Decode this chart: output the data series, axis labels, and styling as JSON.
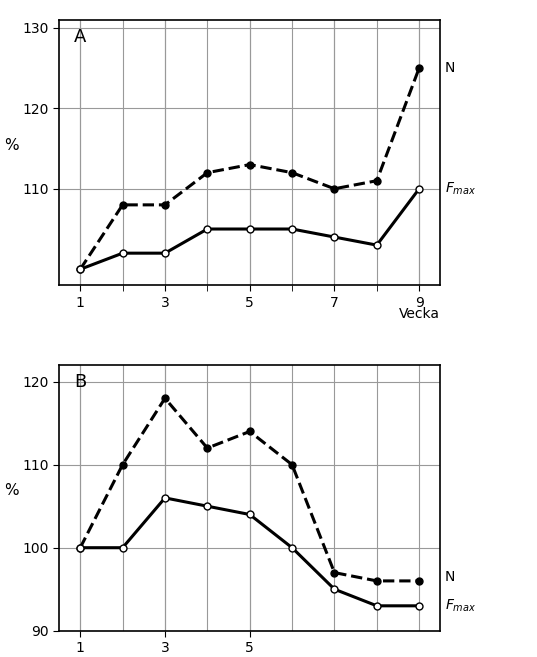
{
  "panel_A": {
    "label": "A",
    "x": [
      1,
      2,
      3,
      4,
      5,
      6,
      7,
      8,
      9
    ],
    "N_dashed": [
      100,
      108,
      108,
      112,
      113,
      112,
      110,
      111,
      125
    ],
    "Fmax_solid": [
      100,
      102,
      102,
      105,
      105,
      105,
      104,
      103,
      110
    ],
    "ylim": [
      98,
      131
    ],
    "yticks": [
      110,
      120,
      130
    ],
    "xticks": [
      1,
      3,
      5,
      7,
      9
    ],
    "ylabel": "%",
    "xlabel": "Vecka"
  },
  "panel_B": {
    "label": "B",
    "x": [
      1,
      2,
      3,
      4,
      5,
      6,
      7,
      8,
      9
    ],
    "N_dashed": [
      100,
      110,
      118,
      112,
      114,
      110,
      97,
      96,
      96
    ],
    "Fmax_solid": [
      100,
      100,
      106,
      105,
      104,
      100,
      95,
      93,
      93
    ],
    "ylim": [
      90,
      122
    ],
    "yticks": [
      90,
      100,
      110,
      120
    ],
    "xticks": [
      1,
      3,
      5
    ],
    "ylabel": "%"
  },
  "line_color": "#000000",
  "background_color": "#ffffff",
  "grid_color": "#999999"
}
